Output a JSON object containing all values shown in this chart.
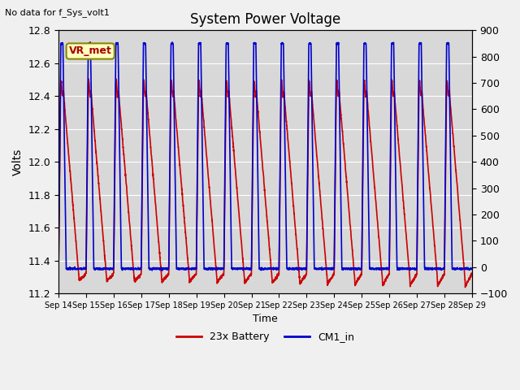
{
  "title": "System Power Voltage",
  "top_left_text": "No data for f_Sys_volt1",
  "ylabel_left": "Volts",
  "xlabel": "Time",
  "ylim_left": [
    11.2,
    12.8
  ],
  "ylim_right": [
    -100,
    900
  ],
  "yticks_left": [
    11.2,
    11.4,
    11.6,
    11.8,
    12.0,
    12.2,
    12.4,
    12.6,
    12.8
  ],
  "yticks_right": [
    -100,
    0,
    100,
    200,
    300,
    400,
    500,
    600,
    700,
    800,
    900
  ],
  "xtick_labels": [
    "Sep 14",
    "Sep 15",
    "Sep 16",
    "Sep 17",
    "Sep 18",
    "Sep 19",
    "Sep 20",
    "Sep 21",
    "Sep 22",
    "Sep 23",
    "Sep 24",
    "Sep 25",
    "Sep 26",
    "Sep 27",
    "Sep 28",
    "Sep 29"
  ],
  "legend": [
    {
      "label": "23x Battery",
      "color": "#cc0000",
      "lw": 1.2
    },
    {
      "label": "CM1_in",
      "color": "#0000cc",
      "lw": 1.2
    }
  ],
  "vr_met_label": "VR_met",
  "plot_bg_color": "#d8d8d8",
  "fig_bg_color": "#f0f0f0",
  "grid_color": "#ffffff",
  "n_days": 15
}
